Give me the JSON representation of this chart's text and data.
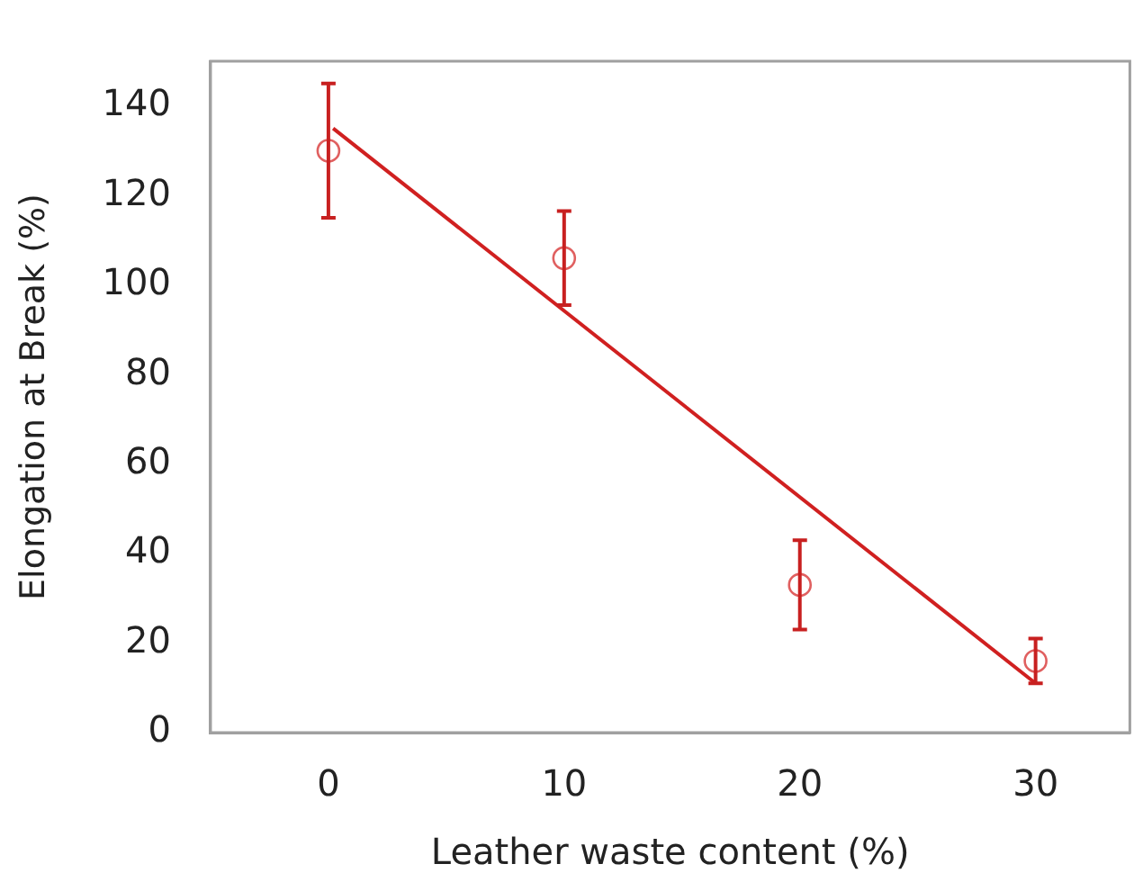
{
  "chart_data": {
    "type": "scatter",
    "xlabel": "Leather waste content (%)",
    "ylabel": "Elongation at Break (%)",
    "xlim": [
      -5,
      34
    ],
    "xticks": [
      0,
      10,
      20,
      30
    ],
    "ylim": [
      0,
      150
    ],
    "yticks": [
      0,
      20,
      40,
      60,
      80,
      100,
      120,
      140
    ],
    "grid": false,
    "legend": false,
    "marker": "circle",
    "series": [
      {
        "color": "#e06060",
        "x": [
          0,
          10,
          20,
          30
        ],
        "values": [
          130,
          106,
          33,
          16
        ],
        "errors": [
          15,
          10.5,
          10,
          5
        ]
      },
      {
        "type": "line",
        "color": "#d02020",
        "x": [
          0.2,
          30
        ],
        "values": [
          135,
          11
        ],
        "marker": "none",
        "line_style": "solid"
      }
    ]
  }
}
